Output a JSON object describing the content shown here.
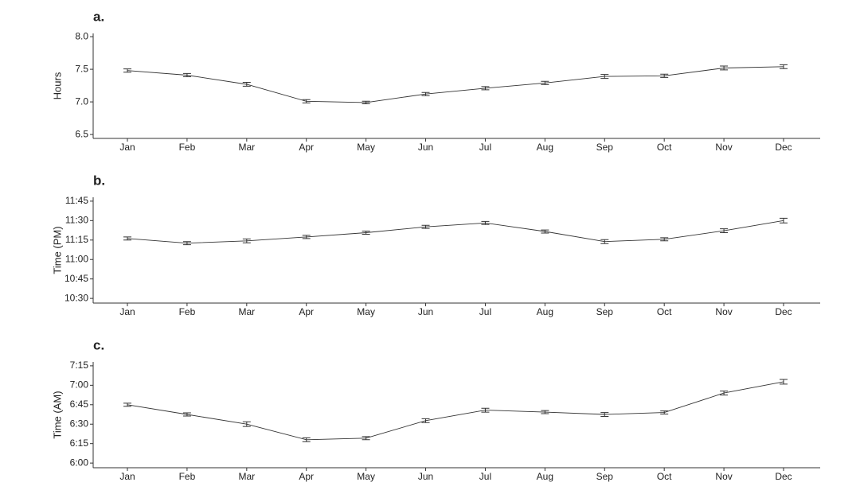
{
  "chart_data": [
    {
      "type": "line",
      "title": "a.",
      "y_label": "Hours",
      "categories": [
        "Jan",
        "Feb",
        "Mar",
        "Apr",
        "May",
        "Jun",
        "Jul",
        "Aug",
        "Sep",
        "Oct",
        "Nov",
        "Dec"
      ],
      "values": [
        7.48,
        7.41,
        7.27,
        7.01,
        6.99,
        7.12,
        7.21,
        7.29,
        7.39,
        7.4,
        7.52,
        7.54
      ],
      "errors": [
        0.025,
        0.025,
        0.03,
        0.025,
        0.02,
        0.025,
        0.025,
        0.025,
        0.03,
        0.025,
        0.03,
        0.03
      ],
      "color": "#333333",
      "ylim": [
        6.44,
        8.05
      ],
      "yticks": [
        {
          "value": 6.5,
          "label": "6.5"
        },
        {
          "value": 7,
          "label": "7.0"
        },
        {
          "value": 7.5,
          "label": "7.5"
        },
        {
          "value": 8,
          "label": "8.0"
        }
      ]
    },
    {
      "type": "line",
      "title": "b.",
      "y_label": "Time (PM)",
      "categories": [
        "Jan",
        "Feb",
        "Mar",
        "Apr",
        "May",
        "Jun",
        "Jul",
        "Aug",
        "Sep",
        "Oct",
        "Nov",
        "Dec"
      ],
      "values": [
        11.27,
        11.21,
        11.24,
        11.29,
        11.345,
        11.42,
        11.47,
        11.36,
        11.23,
        11.26,
        11.37,
        11.5
      ],
      "errors": [
        0.02,
        0.02,
        0.025,
        0.02,
        0.02,
        0.02,
        0.02,
        0.02,
        0.025,
        0.02,
        0.025,
        0.03
      ],
      "color": "#333333",
      "ylim": [
        10.44,
        11.8
      ],
      "yticks": [
        {
          "value": 10.5,
          "label": "10:30"
        },
        {
          "value": 10.75,
          "label": "10:45"
        },
        {
          "value": 11,
          "label": "11:00"
        },
        {
          "value": 11.25,
          "label": "11:15"
        },
        {
          "value": 11.5,
          "label": "11:30"
        },
        {
          "value": 11.75,
          "label": "11:45"
        }
      ]
    },
    {
      "type": "line",
      "title": "c.",
      "y_label": "Time (AM)",
      "categories": [
        "Jan",
        "Feb",
        "Mar",
        "Apr",
        "May",
        "Jun",
        "Jul",
        "Aug",
        "Sep",
        "Oct",
        "Nov",
        "Dec"
      ],
      "values": [
        6.75,
        6.625,
        6.5,
        6.3,
        6.32,
        6.545,
        6.68,
        6.655,
        6.625,
        6.65,
        6.9,
        7.045
      ],
      "errors": [
        0.02,
        0.02,
        0.03,
        0.025,
        0.02,
        0.025,
        0.025,
        0.02,
        0.025,
        0.02,
        0.025,
        0.03
      ],
      "color": "#333333",
      "ylim": [
        5.94,
        7.3
      ],
      "yticks": [
        {
          "value": 6,
          "label": "6:00"
        },
        {
          "value": 6.25,
          "label": "6:15"
        },
        {
          "value": 6.5,
          "label": "6:30"
        },
        {
          "value": 6.75,
          "label": "6:45"
        },
        {
          "value": 7,
          "label": "7:00"
        },
        {
          "value": 7.25,
          "label": "7:15"
        }
      ]
    }
  ]
}
